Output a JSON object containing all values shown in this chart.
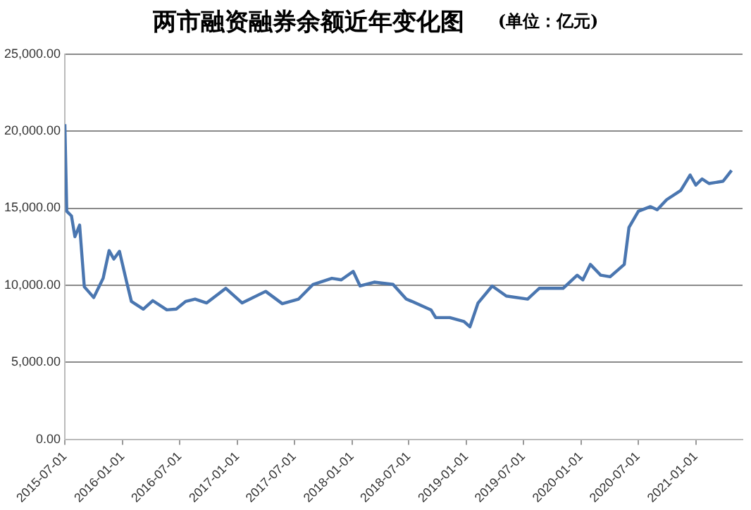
{
  "chart_data": {
    "type": "line",
    "title": "两市融资融券余额近年变化图",
    "subtitle": "(单位：亿元)",
    "x": [
      "2015-07-01",
      "2015-07-07",
      "2015-07-22",
      "2015-08-02",
      "2015-08-17",
      "2015-09-01",
      "2015-10-01",
      "2015-10-31",
      "2015-11-19",
      "2015-12-04",
      "2015-12-22",
      "2016-01-14",
      "2016-01-29",
      "2016-03-07",
      "2016-04-06",
      "2016-05-21",
      "2016-06-20",
      "2016-07-20",
      "2016-08-19",
      "2016-09-25",
      "2016-11-25",
      "2017-01-16",
      "2017-04-01",
      "2017-05-24",
      "2017-07-15",
      "2017-08-30",
      "2017-10-29",
      "2017-11-28",
      "2018-01-05",
      "2018-01-27",
      "2018-03-13",
      "2018-05-12",
      "2018-06-23",
      "2018-07-11",
      "2018-09-10",
      "2018-09-25",
      "2018-11-09",
      "2018-12-24",
      "2019-01-12",
      "2019-02-07",
      "2019-03-24",
      "2019-05-08",
      "2019-07-15",
      "2019-08-21",
      "2019-11-05",
      "2019-12-20",
      "2020-01-07",
      "2020-01-31",
      "2020-03-04",
      "2020-04-03",
      "2020-05-18",
      "2020-06-02",
      "2020-07-02",
      "2020-08-09",
      "2020-08-31",
      "2020-09-30",
      "2020-11-14",
      "2020-12-14",
      "2021-01-01",
      "2021-01-21",
      "2021-02-12",
      "2021-03-29",
      "2021-04-25"
    ],
    "series": [
      {
        "color": "#4a76b0",
        "values": [
          20450,
          14800,
          14500,
          13150,
          13900,
          9900,
          9200,
          10450,
          12250,
          11700,
          12200,
          10200,
          8950,
          8450,
          9000,
          8400,
          8450,
          8950,
          9100,
          8850,
          9800,
          8850,
          9600,
          8800,
          9100,
          10050,
          10450,
          10350,
          10900,
          9950,
          10200,
          10050,
          9100,
          8950,
          8400,
          7900,
          7900,
          7650,
          7300,
          8850,
          9950,
          9300,
          9100,
          9800,
          9800,
          10650,
          10350,
          11350,
          10650,
          10550,
          11350,
          13750,
          14800,
          15100,
          14900,
          15550,
          16150,
          17150,
          16500,
          16900,
          16600,
          16750,
          17450
        ]
      }
    ],
    "xlim": [
      "2015-07-01",
      "2021-05-30"
    ],
    "xticks": [
      "2015-07-01",
      "2016-01-01",
      "2016-07-01",
      "2017-01-01",
      "2017-07-01",
      "2018-01-01",
      "2018-07-01",
      "2019-01-01",
      "2019-07-01",
      "2020-01-01",
      "2020-07-01",
      "2021-01-01"
    ],
    "ylim": [
      0,
      25000
    ],
    "yticks": [
      {
        "value": 0,
        "label": "0.00"
      },
      {
        "value": 5000,
        "label": "5,000.00"
      },
      {
        "value": 10000,
        "label": "10,000.00"
      },
      {
        "value": 15000,
        "label": "15,000.00"
      },
      {
        "value": 20000,
        "label": "20,000.00"
      },
      {
        "value": 25000,
        "label": "25,000.00"
      }
    ],
    "grid": "y",
    "legend": false,
    "marker": "none",
    "line_style": "solid"
  }
}
